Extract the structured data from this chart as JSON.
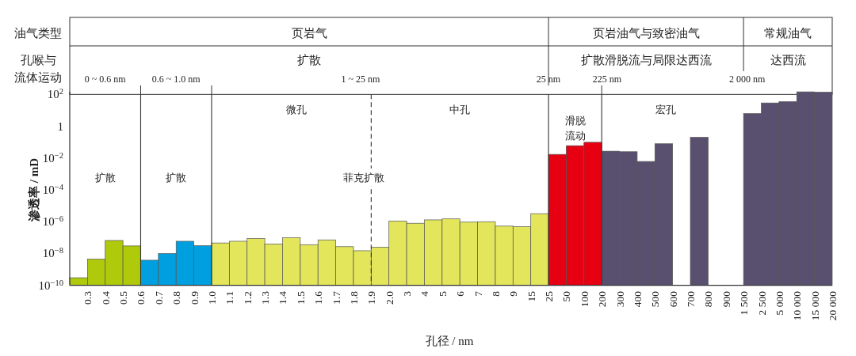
{
  "chart_data": {
    "type": "bar",
    "log": true,
    "xlabel": "孔径 / nm",
    "ylabel": "渗透率 / mD",
    "ylim": [
      1e-10,
      150
    ],
    "yticks": [
      {
        "value": 1e-10,
        "label": "10$^{−10}$"
      },
      {
        "value": 1e-08,
        "label": "10$^{−8}$"
      },
      {
        "value": 1e-06,
        "label": "10$^{−6}$"
      },
      {
        "value": 0.0001,
        "label": "10$^{−4}$"
      },
      {
        "value": 0.01,
        "label": "10$^{−2}$"
      },
      1,
      {
        "value": 100,
        "label": "10$^{2}$"
      }
    ],
    "categories": [
      "0.3",
      "0.4",
      "0.5",
      "0.6",
      "0.7",
      "0.8",
      "0.9",
      "1.0",
      "1.1",
      "1.2",
      "1.3",
      "1.4",
      "1.5",
      "1.6",
      "1.7",
      "1.8",
      "1.9",
      "2.0",
      "3",
      "4",
      "5",
      "6",
      "7",
      "8",
      "9",
      "15",
      "25",
      "50",
      "100",
      "200",
      "300",
      "400",
      "500",
      "600",
      "700",
      "800",
      "900",
      "1 500",
      "2 500",
      "5 000",
      "10 000",
      "15 000",
      "20 000"
    ],
    "values": [
      3e-10,
      4.4e-09,
      6.6e-08,
      3e-08,
      3.8e-09,
      1e-08,
      5.9e-08,
      3.1e-08,
      4.6e-08,
      5.9e-08,
      8.7e-08,
      4e-08,
      1e-07,
      3.6e-08,
      7.2e-08,
      2.7e-08,
      1.5e-08,
      2.5e-08,
      1.1e-06,
      8e-07,
      1.3e-06,
      1.5e-06,
      9.4e-07,
      1e-06,
      5.3e-07,
      4.9e-07,
      3.2e-06,
      0.017,
      0.06,
      0.098,
      0.027,
      0.025,
      0.0061,
      0.079,
      null,
      0.2,
      null,
      null,
      6.2,
      29,
      35,
      145,
      138
    ],
    "colors": [
      "#afca0b",
      "#afca0b",
      "#afca0b",
      "#afca0b",
      "#00a0e0",
      "#00a0e0",
      "#00a0e0",
      "#00a0e0",
      "#e3e65a",
      "#e3e65a",
      "#e3e65a",
      "#e3e65a",
      "#e3e65a",
      "#e3e65a",
      "#e3e65a",
      "#e3e65a",
      "#e3e65a",
      "#e3e65a",
      "#e3e65a",
      "#e3e65a",
      "#e3e65a",
      "#e3e65a",
      "#e3e65a",
      "#e3e65a",
      "#e3e65a",
      "#e3e65a",
      "#e3e65a",
      "#e60012",
      "#e60012",
      "#e60012",
      "#58506e",
      "#58506e",
      "#58506e",
      "#58506e",
      null,
      "#58506e",
      null,
      null,
      "#58506e",
      "#58506e",
      "#58506e",
      "#58506e",
      "#58506e"
    ],
    "ref_lines": [
      {
        "axis": "x",
        "value": "0.6",
        "color": "#333333"
      },
      {
        "axis": "x",
        "value": "1.0",
        "color": "#333333"
      },
      {
        "axis": "x",
        "value": "1.9",
        "color": "#333333",
        "line_style": "dashed"
      },
      {
        "axis": "x",
        "value": "25",
        "color": "#333333"
      },
      {
        "axis": "x",
        "value": "200",
        "color": "#333333"
      }
    ],
    "annotations": [
      "油气类型",
      "孔喉与流体运动",
      "页岩气",
      "页岩油气与致密油气",
      "常规油气",
      "扩散",
      "扩散滑脱流与局限达西流",
      "达西流",
      "0 ~ 0.6 nm",
      "0.6 ~ 1.0 nm",
      "1 ~ 25 nm",
      "25 nm",
      "225 nm",
      "2 000 nm",
      "扩散",
      "扩散",
      "微孔",
      "中孔",
      "菲克扩散",
      "滑脱流动",
      "宏孔"
    ]
  }
}
